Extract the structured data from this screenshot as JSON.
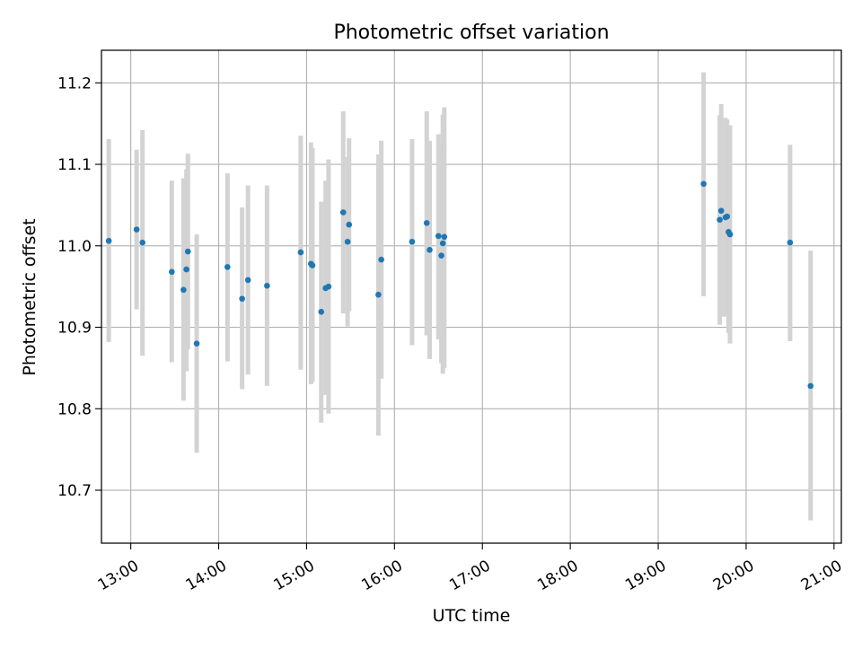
{
  "chart_data": {
    "type": "scatter",
    "title": "Photometric offset variation",
    "xlabel": "UTC time",
    "ylabel": "Photometric offset",
    "xlim": [
      "12:40",
      "21:05"
    ],
    "ylim": [
      10.635,
      11.24
    ],
    "grid": true,
    "x_ticks": [
      "13:00",
      "14:00",
      "15:00",
      "16:00",
      "17:00",
      "18:00",
      "19:00",
      "20:00",
      "21:00"
    ],
    "y_ticks": [
      "10.7",
      "10.8",
      "10.9",
      "11.0",
      "11.1",
      "11.2"
    ],
    "points": [
      {
        "x": "12:45",
        "y": 11.006,
        "lo": 10.882,
        "hi": 11.131
      },
      {
        "x": "13:04",
        "y": 11.02,
        "lo": 10.922,
        "hi": 11.118
      },
      {
        "x": "13:08",
        "y": 11.004,
        "lo": 10.865,
        "hi": 11.142
      },
      {
        "x": "13:28",
        "y": 10.968,
        "lo": 10.857,
        "hi": 11.08
      },
      {
        "x": "13:36",
        "y": 10.946,
        "lo": 10.81,
        "hi": 11.083
      },
      {
        "x": "13:38",
        "y": 10.971,
        "lo": 10.846,
        "hi": 11.094
      },
      {
        "x": "13:39",
        "y": 10.993,
        "lo": 10.873,
        "hi": 11.113
      },
      {
        "x": "13:45",
        "y": 10.88,
        "lo": 10.746,
        "hi": 11.014
      },
      {
        "x": "14:06",
        "y": 10.974,
        "lo": 10.858,
        "hi": 11.089
      },
      {
        "x": "14:16",
        "y": 10.935,
        "lo": 10.824,
        "hi": 11.047
      },
      {
        "x": "14:20",
        "y": 10.958,
        "lo": 10.842,
        "hi": 11.074
      },
      {
        "x": "14:33",
        "y": 10.951,
        "lo": 10.828,
        "hi": 11.074
      },
      {
        "x": "14:56",
        "y": 10.992,
        "lo": 10.848,
        "hi": 11.135
      },
      {
        "x": "15:03",
        "y": 10.978,
        "lo": 10.83,
        "hi": 11.127
      },
      {
        "x": "15:04",
        "y": 10.976,
        "lo": 10.833,
        "hi": 11.12
      },
      {
        "x": "15:10",
        "y": 10.919,
        "lo": 10.783,
        "hi": 11.054
      },
      {
        "x": "15:13",
        "y": 10.948,
        "lo": 10.817,
        "hi": 11.08
      },
      {
        "x": "15:15",
        "y": 10.95,
        "lo": 10.794,
        "hi": 11.106
      },
      {
        "x": "15:25",
        "y": 11.041,
        "lo": 10.917,
        "hi": 11.165
      },
      {
        "x": "15:28",
        "y": 11.005,
        "lo": 10.901,
        "hi": 11.109
      },
      {
        "x": "15:29",
        "y": 11.026,
        "lo": 10.92,
        "hi": 11.132
      },
      {
        "x": "15:49",
        "y": 10.94,
        "lo": 10.767,
        "hi": 11.112
      },
      {
        "x": "15:51",
        "y": 10.983,
        "lo": 10.837,
        "hi": 11.129
      },
      {
        "x": "16:12",
        "y": 11.005,
        "lo": 10.878,
        "hi": 11.131
      },
      {
        "x": "16:22",
        "y": 11.028,
        "lo": 10.89,
        "hi": 11.165
      },
      {
        "x": "16:24",
        "y": 10.995,
        "lo": 10.861,
        "hi": 11.129
      },
      {
        "x": "16:30",
        "y": 11.012,
        "lo": 10.885,
        "hi": 11.137
      },
      {
        "x": "16:32",
        "y": 10.988,
        "lo": 10.856,
        "hi": 11.12
      },
      {
        "x": "16:33",
        "y": 11.003,
        "lo": 10.843,
        "hi": 11.161
      },
      {
        "x": "16:34",
        "y": 11.011,
        "lo": 10.85,
        "hi": 11.17
      },
      {
        "x": "19:31",
        "y": 11.076,
        "lo": 10.938,
        "hi": 11.213
      },
      {
        "x": "19:42",
        "y": 11.032,
        "lo": 10.903,
        "hi": 11.16
      },
      {
        "x": "19:43",
        "y": 11.043,
        "lo": 10.913,
        "hi": 11.174
      },
      {
        "x": "19:46",
        "y": 11.035,
        "lo": 10.913,
        "hi": 11.157
      },
      {
        "x": "19:47",
        "y": 11.036,
        "lo": 10.917,
        "hi": 11.155
      },
      {
        "x": "19:48",
        "y": 11.017,
        "lo": 10.893,
        "hi": 11.14
      },
      {
        "x": "19:49",
        "y": 11.014,
        "lo": 10.88,
        "hi": 11.148
      },
      {
        "x": "20:30",
        "y": 11.004,
        "lo": 10.883,
        "hi": 11.124
      },
      {
        "x": "20:44",
        "y": 10.828,
        "lo": 10.663,
        "hi": 10.994
      }
    ],
    "colors": {
      "point": "#1f77b4",
      "errorbar": "#d3d3d3",
      "grid": "#b0b0b0",
      "axis": "#000000"
    }
  }
}
